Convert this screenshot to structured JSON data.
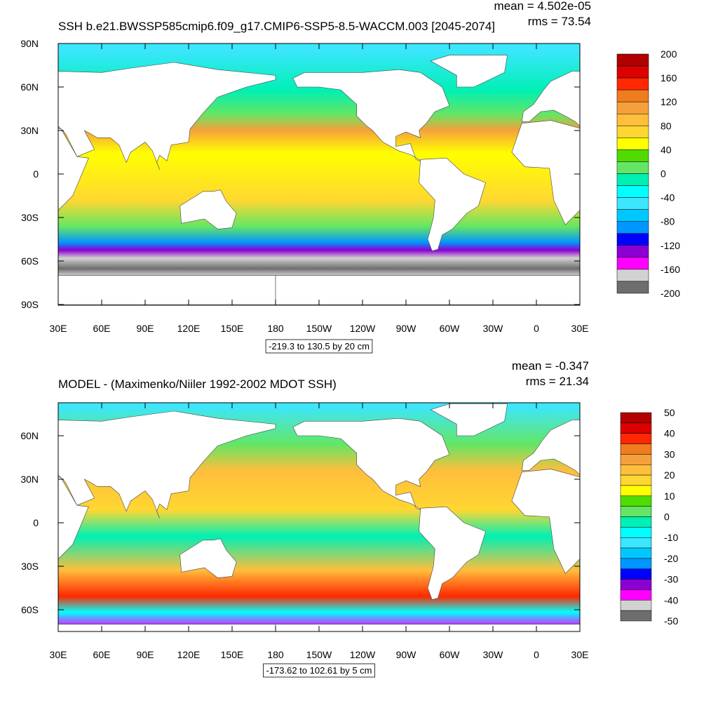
{
  "panels": [
    {
      "title": "SSH b.e21.BWSSP585cmip6.f09_g17.CMIP6-SSP5-8.5-WACCM.003 [2045-2074]",
      "mean": "mean = 4.502e-05",
      "rms": "rms = 73.54",
      "lat_labels": [
        "90N",
        "60N",
        "30N",
        "0",
        "30S",
        "60S",
        "90S"
      ],
      "lon_labels": [
        "30E",
        "60E",
        "90E",
        "120E",
        "150E",
        "180",
        "150W",
        "120W",
        "90W",
        "60W",
        "30W",
        "0",
        "30E"
      ],
      "range_label": "-219.3 to 130.5 by 20 cm",
      "colorbar": {
        "labels": [
          "200",
          "160",
          "120",
          "80",
          "40",
          "0",
          "-40",
          "-80",
          "-120",
          "-160",
          "-200"
        ],
        "colors": [
          "#b00000",
          "#dc0000",
          "#ff2800",
          "#f07c1e",
          "#f5a03c",
          "#ffbe3c",
          "#ffd732",
          "#ffff00",
          "#50dc00",
          "#64e664",
          "#00f0b4",
          "#00ffff",
          "#3ce6ff",
          "#00c8ff",
          "#0096ff",
          "#0000ff",
          "#8c00d2",
          "#ff00ff",
          "#d2d2d2",
          "#6e6e6e"
        ]
      }
    },
    {
      "title": "MODEL - (Maximenko/Niiler 1992-2002 MDOT SSH)",
      "mean": "mean = -0.347",
      "rms": "rms = 21.34",
      "lat_labels": [
        "60N",
        "30N",
        "0",
        "30S",
        "60S"
      ],
      "lon_labels": [
        "30E",
        "60E",
        "90E",
        "120E",
        "150E",
        "180",
        "150W",
        "120W",
        "90W",
        "60W",
        "30W",
        "0",
        "30E"
      ],
      "range_label": "-173.62 to 102.61 by 5 cm",
      "colorbar": {
        "labels": [
          "50",
          "40",
          "30",
          "20",
          "10",
          "0",
          "-10",
          "-20",
          "-30",
          "-40",
          "-50"
        ],
        "colors": [
          "#b00000",
          "#dc0000",
          "#ff2800",
          "#f07c1e",
          "#f5a03c",
          "#ffbe3c",
          "#ffd732",
          "#ffff00",
          "#50dc00",
          "#64e664",
          "#00f0b4",
          "#00ffff",
          "#3ce6ff",
          "#00c8ff",
          "#0096ff",
          "#0000ff",
          "#8c00d2",
          "#ff00ff",
          "#d2d2d2",
          "#6e6e6e"
        ]
      }
    }
  ]
}
